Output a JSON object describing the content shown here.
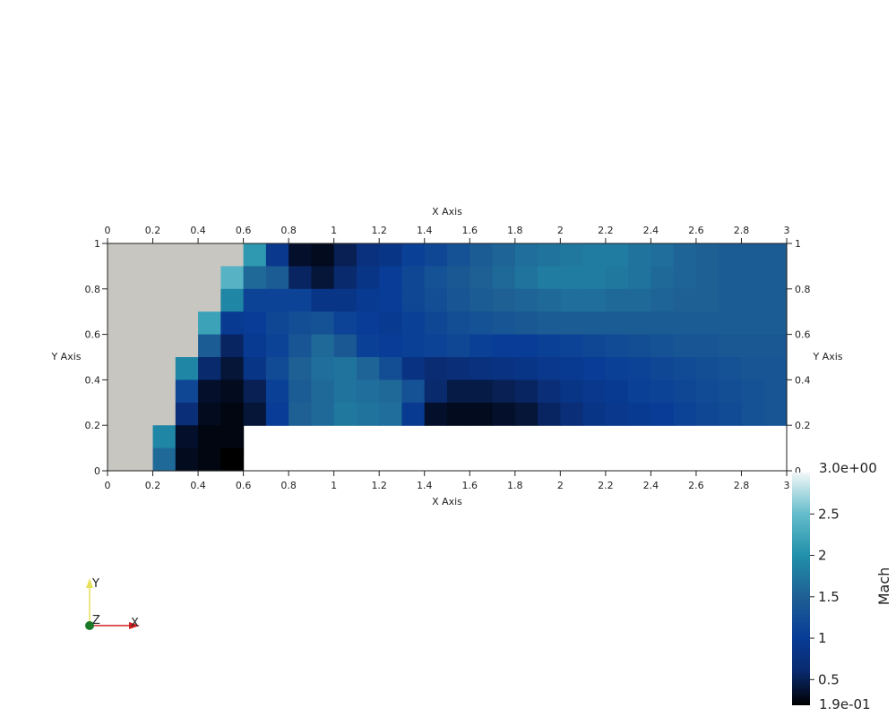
{
  "chart_data": {
    "type": "heatmap",
    "title": "",
    "xlabel": "X Axis",
    "ylabel": "Y Axis",
    "xlim": [
      0,
      3
    ],
    "ylim": [
      0,
      1
    ],
    "x_ticks": [
      "0",
      "0.2",
      "0.4",
      "0.6",
      "0.8",
      "1",
      "1.2",
      "1.4",
      "1.6",
      "1.8",
      "2",
      "2.2",
      "2.4",
      "2.6",
      "2.8",
      "3"
    ],
    "y_ticks": [
      "0",
      "0.2",
      "0.4",
      "0.6",
      "0.8",
      "1"
    ],
    "grid": false,
    "cell_size": [
      0.1,
      0.1
    ],
    "no_data_color": "#c8c6c0",
    "values_note": "rows listed top (y 0.9-1.0) to bottom (y 0.0-0.1); null = no-data cell (gray); empty step region 0.6<x<3, 0<y<0.2",
    "rows": [
      [
        null,
        null,
        null,
        null,
        null,
        null,
        2.1,
        0.9,
        0.35,
        0.3,
        0.5,
        0.75,
        0.85,
        1.05,
        1.15,
        1.3,
        1.45,
        1.55,
        1.65,
        1.7,
        1.75,
        1.8,
        1.8,
        1.7,
        1.65,
        1.55,
        1.5,
        1.45,
        1.45,
        1.45
      ],
      [
        null,
        null,
        null,
        null,
        null,
        2.4,
        1.6,
        1.45,
        0.55,
        0.4,
        0.6,
        0.85,
        1.0,
        1.15,
        1.3,
        1.4,
        1.5,
        1.6,
        1.7,
        1.8,
        1.8,
        1.8,
        1.75,
        1.7,
        1.6,
        1.55,
        1.5,
        1.45,
        1.45,
        1.45
      ],
      [
        null,
        null,
        null,
        null,
        null,
        1.9,
        1.1,
        1.1,
        1.1,
        0.85,
        0.85,
        0.95,
        1.0,
        1.15,
        1.25,
        1.35,
        1.45,
        1.5,
        1.55,
        1.6,
        1.65,
        1.65,
        1.6,
        1.6,
        1.55,
        1.5,
        1.5,
        1.45,
        1.45,
        1.45
      ],
      [
        null,
        null,
        null,
        null,
        2.2,
        0.95,
        1.0,
        1.15,
        1.25,
        1.3,
        1.1,
        1.0,
        0.95,
        1.05,
        1.15,
        1.25,
        1.3,
        1.35,
        1.4,
        1.45,
        1.45,
        1.45,
        1.45,
        1.45,
        1.45,
        1.45,
        1.45,
        1.45,
        1.45,
        1.45
      ],
      [
        null,
        null,
        null,
        null,
        1.45,
        0.55,
        0.95,
        1.1,
        1.35,
        1.6,
        1.4,
        1.05,
        1.0,
        1.05,
        1.1,
        1.15,
        1.05,
        1.0,
        1.0,
        1.05,
        1.1,
        1.15,
        1.2,
        1.25,
        1.3,
        1.35,
        1.35,
        1.4,
        1.4,
        1.4
      ],
      [
        null,
        null,
        null,
        1.9,
        0.6,
        0.4,
        0.85,
        1.2,
        1.5,
        1.65,
        1.7,
        1.55,
        1.25,
        0.8,
        0.65,
        0.7,
        0.75,
        0.8,
        0.85,
        0.9,
        0.95,
        1.0,
        1.05,
        1.1,
        1.15,
        1.2,
        1.25,
        1.3,
        1.35,
        1.35
      ],
      [
        null,
        null,
        null,
        1.15,
        0.35,
        0.3,
        0.5,
        1.05,
        1.45,
        1.6,
        1.7,
        1.65,
        1.6,
        1.3,
        0.6,
        0.45,
        0.45,
        0.5,
        0.55,
        0.7,
        0.85,
        0.9,
        0.95,
        1.05,
        1.1,
        1.15,
        1.2,
        1.25,
        1.3,
        1.35
      ],
      [
        null,
        null,
        null,
        0.7,
        0.3,
        0.25,
        0.4,
        1.0,
        1.5,
        1.6,
        1.75,
        1.7,
        1.65,
        0.95,
        0.35,
        0.3,
        0.3,
        0.35,
        0.4,
        0.55,
        0.7,
        0.85,
        0.9,
        0.95,
        1.0,
        1.1,
        1.15,
        1.2,
        1.3,
        1.35
      ],
      [
        null,
        null,
        1.9,
        0.35,
        0.25,
        0.25,
        null,
        null,
        null,
        null,
        null,
        null,
        null,
        null,
        null,
        null,
        null,
        null,
        null,
        null,
        null,
        null,
        null,
        null,
        null,
        null,
        null,
        null,
        null,
        null
      ],
      [
        null,
        null,
        1.6,
        0.3,
        0.25,
        0.19,
        null,
        null,
        null,
        null,
        null,
        null,
        null,
        null,
        null,
        null,
        null,
        null,
        null,
        null,
        null,
        null,
        null,
        null,
        null,
        null,
        null,
        null,
        null,
        null
      ]
    ],
    "step_region": {
      "x": [
        0.6,
        3.0
      ],
      "y": [
        0.0,
        0.2
      ]
    },
    "colorbar": {
      "label": "Mach",
      "min": 0.19,
      "max": 3.0,
      "min_label": "1.9e-01",
      "max_label": "3.0e+00",
      "ticks": [
        "0.5",
        "1",
        "1.5",
        "2",
        "2.5"
      ],
      "stops": [
        {
          "v": 0.19,
          "color": "#000000"
        },
        {
          "v": 0.6,
          "color": "#0a2a6e"
        },
        {
          "v": 1.0,
          "color": "#083c96"
        },
        {
          "v": 1.5,
          "color": "#1e5f94"
        },
        {
          "v": 2.0,
          "color": "#2190aa"
        },
        {
          "v": 2.5,
          "color": "#64bccb"
        },
        {
          "v": 3.0,
          "color": "#f2f7f7"
        }
      ]
    }
  },
  "orientation_axes": {
    "x_label": "X",
    "y_label": "Y",
    "z_label": "Z"
  }
}
